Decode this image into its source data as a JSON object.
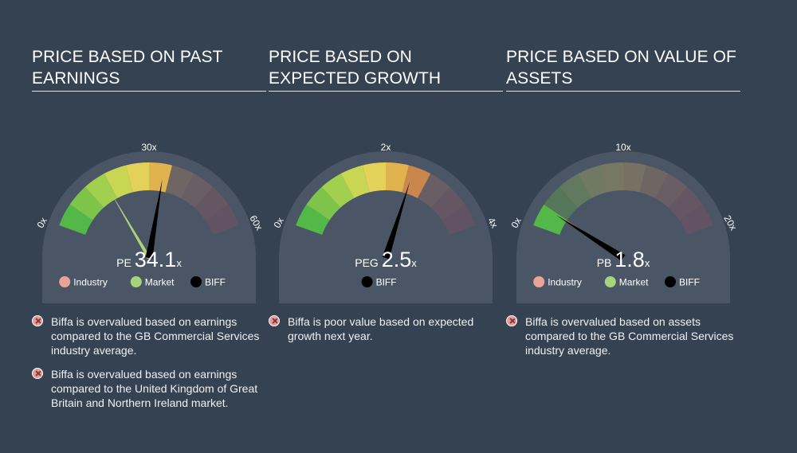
{
  "colors": {
    "background": "#354252",
    "industry": "#e8a597",
    "market": "#a6d47a",
    "company": "#000000",
    "pointer": "#000000"
  },
  "panels": [
    {
      "title": "PRICE BASED ON PAST EARNINGS",
      "ticks": {
        "min": "0x",
        "mid": "30x",
        "max": "60x"
      },
      "metric": {
        "label": "PE",
        "value": "34.1",
        "suffix": "x"
      },
      "legend": [
        {
          "name": "Industry",
          "color": "#e8a597"
        },
        {
          "name": "Market",
          "color": "#a6d47a"
        },
        {
          "name": "BIFF",
          "color": "#000000"
        }
      ],
      "notes": [
        "Biffa is overvalued based on earnings compared to the GB Commercial Services industry average.",
        "Biffa is overvalued based on earnings compared to the United Kingdom of Great Britain and Northern Ireland market."
      ]
    },
    {
      "title": "PRICE BASED ON EXPECTED GROWTH",
      "ticks": {
        "min": "0x",
        "mid": "2x",
        "max": "4x"
      },
      "metric": {
        "label": "PEG",
        "value": "2.5",
        "suffix": "x"
      },
      "legend": [
        {
          "name": "BIFF",
          "color": "#000000"
        }
      ],
      "notes": [
        "Biffa is poor value based on expected growth next year."
      ]
    },
    {
      "title": "PRICE BASED ON VALUE OF ASSETS",
      "ticks": {
        "min": "0x",
        "mid": "10x",
        "max": "20x"
      },
      "metric": {
        "label": "PB",
        "value": "1.8",
        "suffix": "x"
      },
      "legend": [
        {
          "name": "Industry",
          "color": "#e8a597"
        },
        {
          "name": "Market",
          "color": "#a6d47a"
        },
        {
          "name": "BIFF",
          "color": "#000000"
        }
      ],
      "notes": [
        "Biffa is overvalued based on assets compared to the GB Commercial Services industry average."
      ]
    }
  ],
  "chart_data": [
    {
      "type": "gauge",
      "metric": "PE",
      "range": [
        0,
        60
      ],
      "company": {
        "name": "BIFF",
        "value": 34.1
      },
      "market": 17,
      "industry": 17
    },
    {
      "type": "gauge",
      "metric": "PEG",
      "range": [
        0,
        4
      ],
      "company": {
        "name": "BIFF",
        "value": 2.5
      }
    },
    {
      "type": "gauge",
      "metric": "PB",
      "range": [
        0,
        20
      ],
      "company": {
        "name": "BIFF",
        "value": 1.8
      },
      "market": 1.8,
      "industry": 1.9
    }
  ]
}
